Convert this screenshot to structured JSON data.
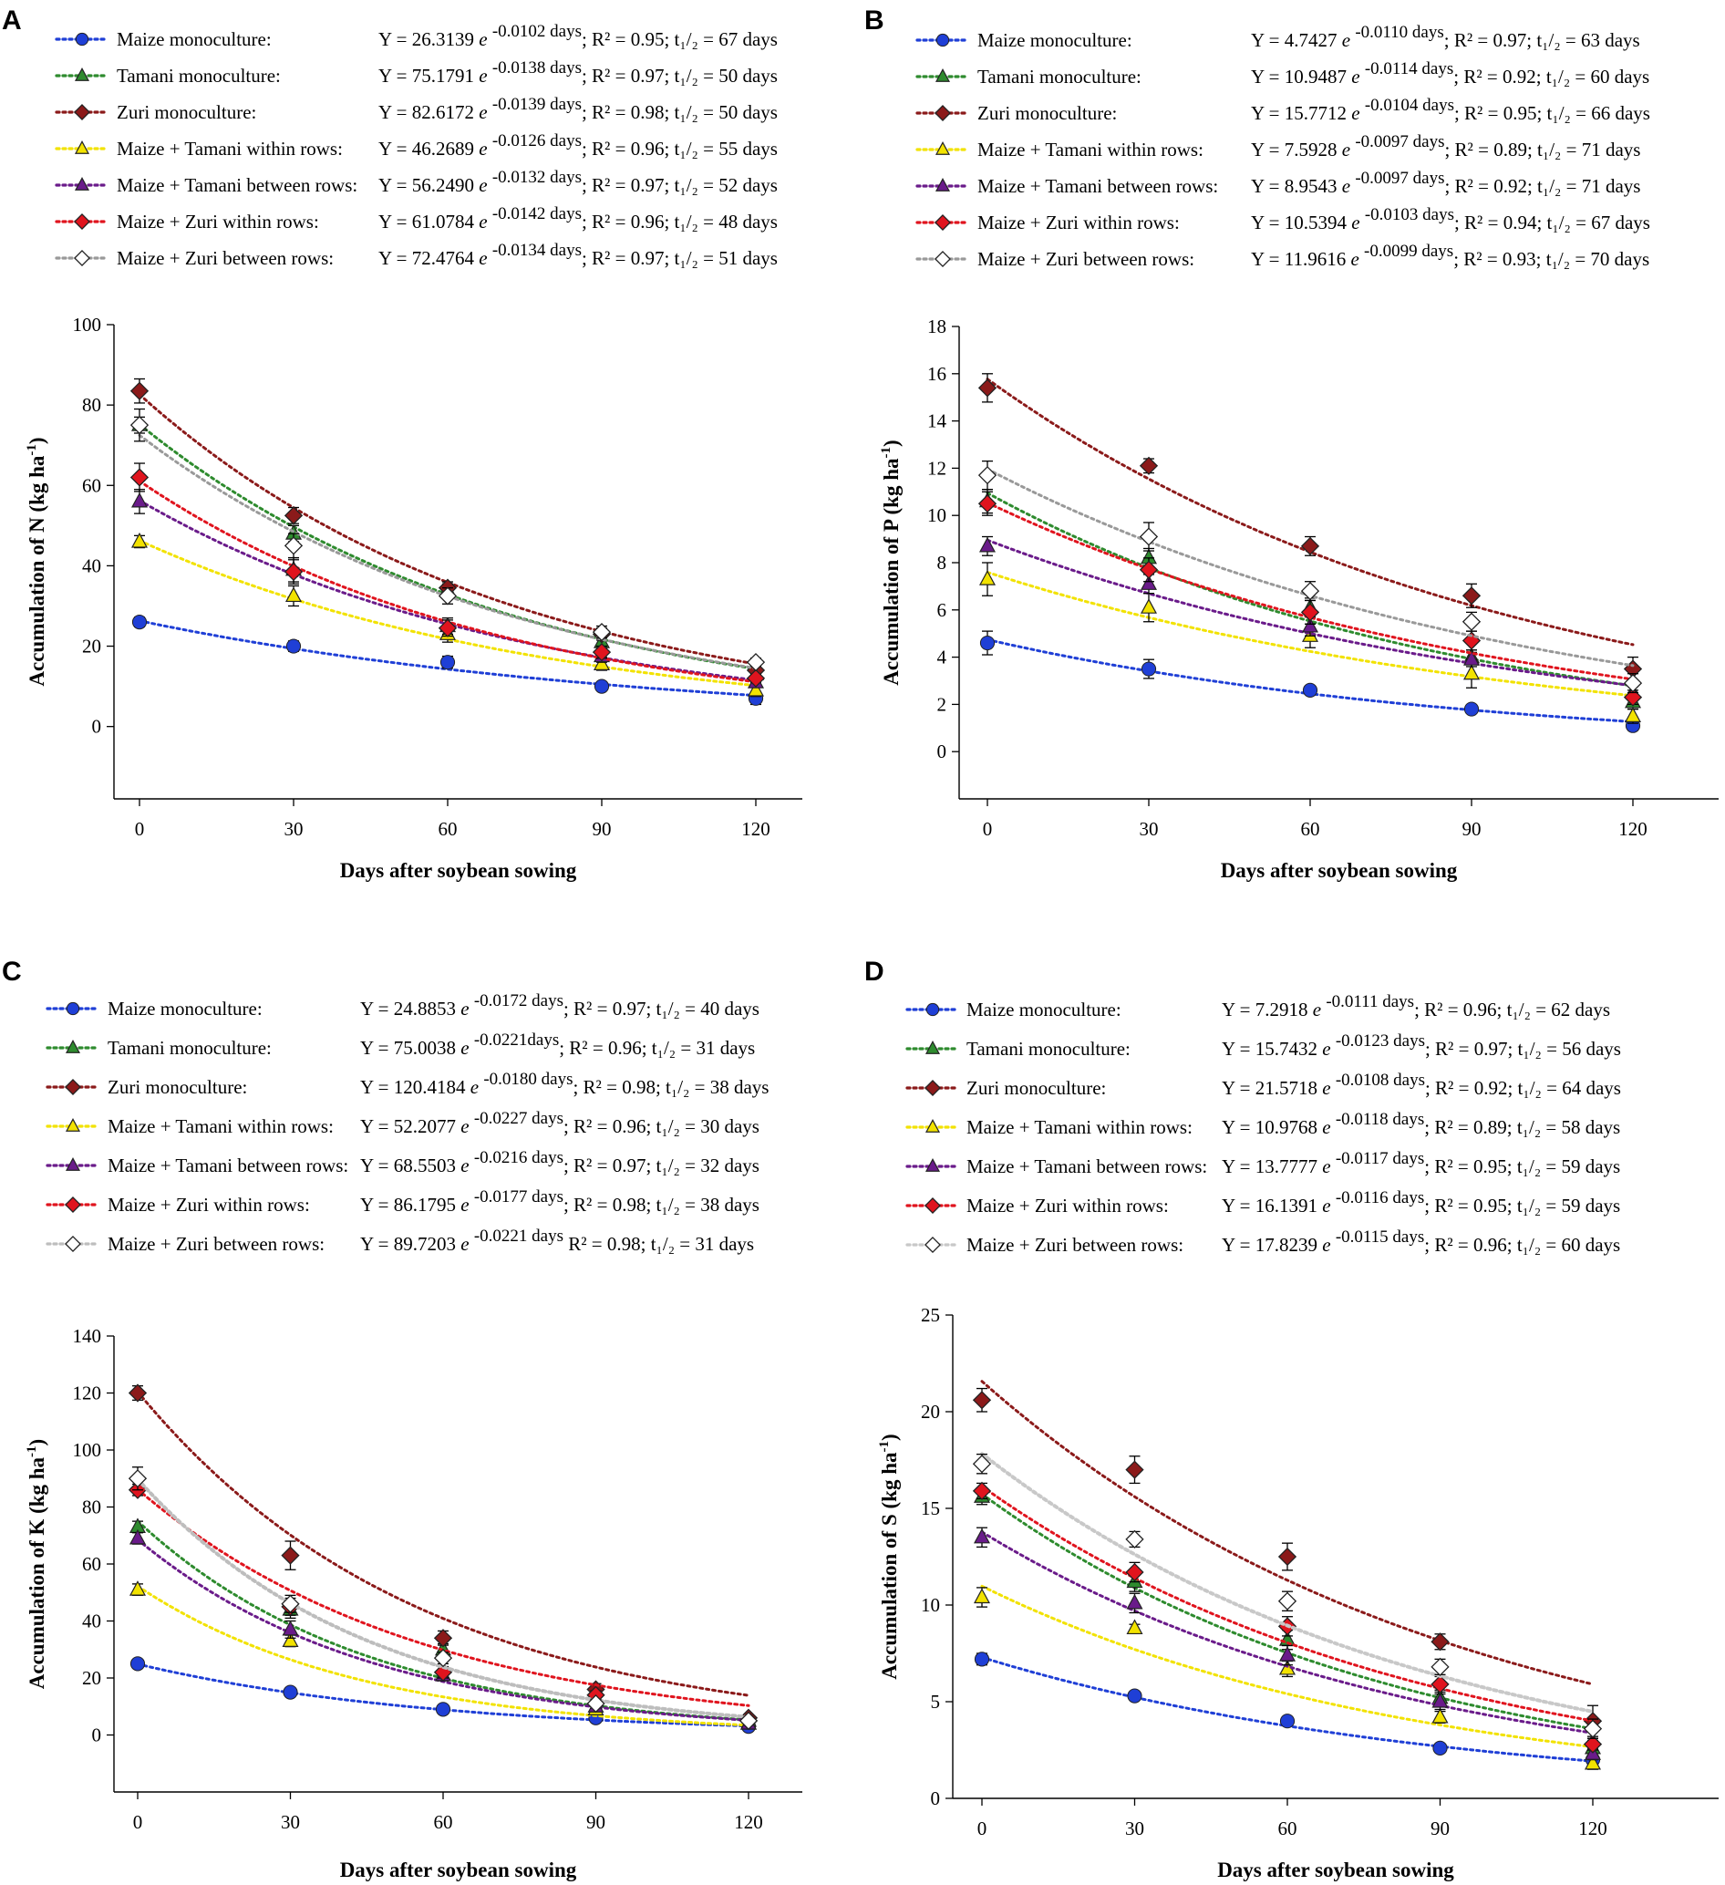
{
  "chart_data": [
    {
      "type": "scatter",
      "panel": "A",
      "xlabel": "Days after soybean sowing",
      "ylabel_main": "Accumulation of N (kg ha",
      "ylabel_sup": "-1",
      "ylabel_end": ")",
      "x": [
        0,
        30,
        60,
        90,
        120
      ],
      "xticks": [
        "0",
        "30",
        "60",
        "90",
        "120"
      ],
      "ylim": [
        -18,
        100
      ],
      "yticks": [
        0,
        20,
        40,
        60,
        80,
        100
      ],
      "series": [
        {
          "name": "Maize monoculture:",
          "color": "#1f3fd6",
          "marker": "circle",
          "values": [
            26,
            20,
            16,
            10,
            7
          ],
          "errors": [
            1.2,
            1.3,
            1.5,
            1,
            1.5
          ],
          "a": 26.3139,
          "k": 0.0102,
          "coef": "Y = 26.3139 ",
          "exp": "-0.0102 days",
          "fit": "; R² = 0.95; t₁/₂ = 67 days"
        },
        {
          "name": "Tamani monoculture:",
          "color": "#2e8b2e",
          "marker": "triangle",
          "values": [
            75,
            48,
            34,
            21,
            13
          ],
          "errors": [
            2,
            2,
            1.5,
            1.5,
            1
          ],
          "a": 75.1791,
          "k": 0.0138,
          "coef": "Y = 75.1791 ",
          "exp": "-0.0138 days",
          "fit": "; R² = 0.97; t₁/₂ = 50 days"
        },
        {
          "name": "Zuri monoculture:",
          "color": "#8b1a1a",
          "marker": "diamond",
          "values": [
            83.5,
            52.5,
            34.5,
            23,
            14
          ],
          "errors": [
            3,
            2,
            1.5,
            1.5,
            1
          ],
          "a": 82.6172,
          "k": 0.0139,
          "coef": "Y = 82.6172 ",
          "exp": "-0.0139 days",
          "fit": "; R² = 0.98; t₁/₂ = 50 days"
        },
        {
          "name": "Maize + Tamani within rows:",
          "color": "#f2e200",
          "marker": "triangle-open",
          "values": [
            46,
            32.5,
            23,
            15.5,
            9
          ],
          "errors": [
            1.5,
            2.5,
            2,
            1.5,
            1.5
          ],
          "a": 46.2689,
          "k": 0.0126,
          "coef": "Y = 46.2689 ",
          "exp": "-0.0126 days",
          "fit": "; R² = 0.96; t₁/₂ = 55 days"
        },
        {
          "name": "Maize + Tamani between rows:",
          "color": "#6a1b8a",
          "marker": "triangle",
          "values": [
            56,
            39,
            25,
            17.5,
            11
          ],
          "errors": [
            3,
            3,
            2,
            1.5,
            1
          ],
          "a": 56.249,
          "k": 0.0132,
          "coef": "Y = 56.2490 ",
          "exp": "-0.0132 days",
          "fit": "; R² = 0.97; t₁/₂ = 52 days"
        },
        {
          "name": "Maize + Zuri within rows:",
          "color": "#e0141e",
          "marker": "diamond",
          "values": [
            62,
            38.5,
            24.5,
            18.5,
            12
          ],
          "errors": [
            3.5,
            3,
            2,
            1.5,
            1
          ],
          "a": 61.0784,
          "k": 0.0142,
          "coef": "Y = 61.0784 ",
          "exp": "-0.0142 days",
          "fit": "; R² = 0.96; t₁/₂ = 48 days"
        },
        {
          "name": "Maize + Zuri between rows:",
          "color": "#999999",
          "marker": "diamond-open",
          "values": [
            75,
            45,
            32.5,
            23.5,
            16
          ],
          "errors": [
            4,
            3,
            2,
            1.5,
            1
          ],
          "a": 72.4764,
          "k": 0.0134,
          "coef": "Y = 72.4764 ",
          "exp": "-0.0134 days",
          "fit": "; R² = 0.97; t₁/₂ = 51 days"
        }
      ]
    },
    {
      "type": "scatter",
      "panel": "B",
      "xlabel": "Days after soybean sowing",
      "ylabel_main": "Accumulation of P (kg ha",
      "ylabel_sup": "-1",
      "ylabel_end": ")",
      "x": [
        0,
        30,
        60,
        90,
        120
      ],
      "xticks": [
        "0",
        "30",
        "60",
        "90",
        "120"
      ],
      "ylim": [
        -2,
        18
      ],
      "yticks": [
        0,
        2,
        4,
        6,
        8,
        10,
        12,
        14,
        16,
        18
      ],
      "series": [
        {
          "name": "Maize monoculture:",
          "color": "#1f3fd6",
          "marker": "circle",
          "values": [
            4.6,
            3.5,
            2.6,
            1.8,
            1.1
          ],
          "errors": [
            0.5,
            0.4,
            0.15,
            0.1,
            0.2
          ],
          "a": 4.7427,
          "k": 0.011,
          "coef": "Y = 4.7427 ",
          "exp": "-0.0110 days",
          "fit": ";   R² = 0.97; t₁/₂ = 63 days"
        },
        {
          "name": "Tamani monoculture:",
          "color": "#2e8b2e",
          "marker": "triangle",
          "values": [
            10.6,
            8.2,
            6.1,
            4,
            2.1
          ],
          "errors": [
            0.5,
            0.4,
            0.4,
            0.3,
            0.3
          ],
          "a": 10.9487,
          "k": 0.0114,
          "coef": "Y = 10.9487 ",
          "exp": "-0.0114 days",
          "fit": "; R² = 0.92; t₁/₂ = 60 days"
        },
        {
          "name": "Zuri monoculture:",
          "color": "#8b1a1a",
          "marker": "diamond",
          "values": [
            15.4,
            12.1,
            8.7,
            6.6,
            3.5
          ],
          "errors": [
            0.6,
            0.3,
            0.4,
            0.5,
            0.5
          ],
          "a": 15.7712,
          "k": 0.0104,
          "coef": "Y = 15.7712 ",
          "exp": "-0.0104 days",
          "fit": "; R² = 0.95; t₁/₂ = 66 days"
        },
        {
          "name": "Maize + Tamani within rows:",
          "color": "#f2e200",
          "marker": "triangle-open",
          "values": [
            7.3,
            6.1,
            4.9,
            3.3,
            1.5
          ],
          "errors": [
            0.7,
            0.6,
            0.5,
            0.6,
            0.3
          ],
          "a": 7.5928,
          "k": 0.0097,
          "coef": "Y = 7.5928 ",
          "exp": "-0.0097 days",
          "fit": ";   R² = 0.89; t₁/₂ = 71 days"
        },
        {
          "name": "Maize + Tamani between rows:",
          "color": "#6a1b8a",
          "marker": "triangle",
          "values": [
            8.7,
            7.1,
            5.3,
            3.9,
            2.5
          ],
          "errors": [
            0.4,
            0.4,
            0.4,
            0.3,
            0.3
          ],
          "a": 8.9543,
          "k": 0.0097,
          "coef": "Y = 8.9543 ",
          "exp": "-0.0097 days",
          "fit": ";   R² = 0.92; t₁/₂ = 71 days"
        },
        {
          "name": "Maize + Zuri within rows:",
          "color": "#e0141e",
          "marker": "diamond",
          "values": [
            10.5,
            7.7,
            5.9,
            4.7,
            2.3
          ],
          "errors": [
            0.5,
            0.5,
            0.5,
            0.4,
            0.3
          ],
          "a": 10.5394,
          "k": 0.0103,
          "coef": "Y = 10.5394 ",
          "exp": "-0.0103 days",
          "fit": "; R² = 0.94; t₁/₂ = 67 days"
        },
        {
          "name": "Maize + Zuri between rows:",
          "color": "#999999",
          "marker": "diamond-open",
          "values": [
            11.7,
            9.1,
            6.8,
            5.5,
            2.9
          ],
          "errors": [
            0.6,
            0.6,
            0.4,
            0.4,
            0.4
          ],
          "a": 11.9616,
          "k": 0.0099,
          "coef": "Y = 11.9616 ",
          "exp": "-0.0099 days",
          "fit": "; R² = 0.93; t₁/₂ = 70 days"
        }
      ]
    },
    {
      "type": "scatter",
      "panel": "C",
      "xlabel": "Days after soybean sowing",
      "ylabel_main": "Accumulation of K (kg ha",
      "ylabel_sup": "-1",
      "ylabel_end": ")",
      "x": [
        0,
        30,
        60,
        90,
        120
      ],
      "xticks": [
        "0",
        "30",
        "60",
        "90",
        "120"
      ],
      "ylim": [
        -20,
        140
      ],
      "yticks": [
        0,
        20,
        40,
        60,
        80,
        100,
        120,
        140
      ],
      "series": [
        {
          "name": "Maize monoculture:",
          "color": "#1f3fd6",
          "marker": "circle",
          "values": [
            25,
            15,
            9,
            6,
            3
          ],
          "errors": [
            1,
            0.8,
            0.8,
            0.8,
            0.5
          ],
          "a": 24.8853,
          "k": 0.0172,
          "coef": "Y = 24.8853 ",
          "exp": "-0.0172 days",
          "fit": "; R² = 0.97; t₁/₂ = 40 days"
        },
        {
          "name": "Tamani monoculture:",
          "color": "#2e8b2e",
          "marker": "triangle",
          "values": [
            73,
            44,
            30,
            12,
            5
          ],
          "errors": [
            2,
            3,
            2,
            2,
            1
          ],
          "a": 75.0038,
          "k": 0.0221,
          "coef": "Y = 75.0038 ",
          "exp": "-0.0221days",
          "fit": ";  R² = 0.96; t₁/₂ = 31 days"
        },
        {
          "name": "Zuri monoculture:",
          "color": "#8b1a1a",
          "marker": "diamond",
          "values": [
            120,
            63,
            34,
            16,
            6
          ],
          "errors": [
            2.5,
            5,
            2.5,
            2,
            1
          ],
          "a": 120.4184,
          "k": 0.018,
          "coef": "Y = 120.4184 ",
          "exp": "-0.0180 days",
          "fit": "; R² = 0.98; t₁/₂ = 38 days"
        },
        {
          "name": "Maize + Tamani within rows:",
          "color": "#f2e200",
          "marker": "triangle-open",
          "values": [
            51,
            33,
            21,
            9,
            4
          ],
          "errors": [
            2,
            2,
            1.5,
            1,
            1
          ],
          "a": 52.2077,
          "k": 0.0227,
          "coef": "Y = 52.2077 ",
          "exp": "-0.0227 days",
          "fit": ";  R² = 0.96;  t₁/₂ = 30 days"
        },
        {
          "name": "Maize + Tamani between rows:",
          "color": "#6a1b8a",
          "marker": "triangle",
          "values": [
            69,
            37,
            21,
            10,
            4
          ],
          "errors": [
            2,
            3,
            2,
            1.5,
            1
          ],
          "a": 68.5503,
          "k": 0.0216,
          "coef": "Y = 68.5503 ",
          "exp": "-0.0216 days",
          "fit": "; R² = 0.97; t₁/₂ =  32 days"
        },
        {
          "name": "Maize + Zuri within rows:",
          "color": "#e0141e",
          "marker": "diamond",
          "values": [
            86,
            45,
            22,
            14,
            5
          ],
          "errors": [
            2,
            3,
            2,
            1.5,
            1
          ],
          "a": 86.1795,
          "k": 0.0177,
          "coef": "Y = 86.1795 ",
          "exp": "-0.0177 days",
          "fit": "; R² = 0.98; t₁/₂ = 38 days"
        },
        {
          "name": "Maize + Zuri between rows:",
          "color": "#bdbdbd",
          "marker": "diamond-open",
          "values": [
            90,
            46,
            27,
            11,
            5
          ],
          "errors": [
            4,
            3,
            2,
            1.5,
            1
          ],
          "a": 89.7203,
          "k": 0.0221,
          "coef": "Y = 89.7203 ",
          "exp": "-0.0221 days",
          "fit": " R² = 0.98; t₁/₂ =  31 days"
        }
      ]
    },
    {
      "type": "scatter",
      "panel": "D",
      "xlabel": "Days after soybean sowing",
      "ylabel_main": "Accumulation of S (kg ha",
      "ylabel_sup": "-1",
      "ylabel_end": ")",
      "x": [
        0,
        30,
        60,
        90,
        120
      ],
      "xticks": [
        "0",
        "30",
        "60",
        "90",
        "120"
      ],
      "ylim": [
        0,
        25
      ],
      "yticks": [
        0,
        5,
        10,
        15,
        20,
        25
      ],
      "series": [
        {
          "name": "Maize monoculture:",
          "color": "#1f3fd6",
          "marker": "circle",
          "values": [
            7.2,
            5.3,
            4,
            2.6,
            2
          ],
          "errors": [
            0.3,
            0.2,
            0.15,
            0.1,
            0.2
          ],
          "a": 7.2918,
          "k": 0.0111,
          "coef": "Y = 7.2918 ",
          "exp": "-0.0111 days",
          "fit": "; R² = 0.96; t₁/₂ =  62 days"
        },
        {
          "name": "Tamani monoculture:",
          "color": "#2e8b2e",
          "marker": "triangle",
          "values": [
            15.6,
            11.2,
            8.2,
            5.2,
            2.6
          ],
          "errors": [
            0.4,
            0.5,
            0.5,
            0.4,
            0.4
          ],
          "a": 15.7432,
          "k": 0.0123,
          "coef": "Y = 15.7432 ",
          "exp": "-0.0123 days",
          "fit": "; R² = 0.97; t₁/₂ = 56 days"
        },
        {
          "name": "Zuri monoculture:",
          "color": "#8b1a1a",
          "marker": "diamond",
          "values": [
            20.6,
            17,
            12.5,
            8.1,
            4
          ],
          "errors": [
            0.6,
            0.7,
            0.7,
            0.4,
            0.8
          ],
          "a": 21.5718,
          "k": 0.0108,
          "coef": "Y = 21.5718 ",
          "exp": "-0.0108 days",
          "fit": "; R² = 0.92; t₁/₂ = 64 days"
        },
        {
          "name": "Maize + Tamani within rows:",
          "color": "#f2e200",
          "marker": "triangle-open",
          "values": [
            10.4,
            8.8,
            6.7,
            4.2,
            1.8
          ],
          "errors": [
            0.5,
            0.2,
            0.4,
            0.3,
            0.3
          ],
          "a": 10.9768,
          "k": 0.0118,
          "coef": "Y = 10.9768 ",
          "exp": "-0.0118 days",
          "fit": "; R² = 0.89; t₁/₂ = 58 days"
        },
        {
          "name": "Maize + Tamani between rows:",
          "color": "#6a1b8a",
          "marker": "triangle",
          "values": [
            13.5,
            10.1,
            7.4,
            5,
            2.3
          ],
          "errors": [
            0.5,
            0.5,
            0.5,
            0.4,
            0.3
          ],
          "a": 13.7777,
          "k": 0.0117,
          "coef": "Y = 13.7777 ",
          "exp": "-0.0117 days",
          "fit": "; R² = 0.95; t₁/₂ = 59 days"
        },
        {
          "name": "Maize + Zuri within rows:",
          "color": "#e0141e",
          "marker": "diamond",
          "values": [
            15.9,
            11.7,
            8.9,
            5.9,
            2.8
          ],
          "errors": [
            0.4,
            0.5,
            0.5,
            0.4,
            0.3
          ],
          "a": 16.1391,
          "k": 0.0116,
          "coef": "Y = 16.1391 ",
          "exp": "-0.0116 days",
          "fit": "; R² = 0.95; t₁/₂ = 59 days"
        },
        {
          "name": "Maize + Zuri between rows:",
          "color": "#c8c8c8",
          "marker": "diamond-open",
          "values": [
            17.3,
            13.4,
            10.2,
            6.8,
            3.6
          ],
          "errors": [
            0.5,
            0.4,
            0.5,
            0.4,
            0.5
          ],
          "a": 17.8239,
          "k": 0.0115,
          "coef": "Y = 17.8239 ",
          "exp": "-0.0115 days",
          "fit": "; R² = 0.96; t₁/₂ = 60 days"
        }
      ]
    }
  ]
}
